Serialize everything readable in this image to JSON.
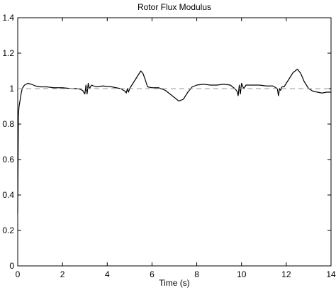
{
  "chart_data": {
    "type": "line",
    "title": "Rotor Flux Modulus",
    "xlabel": "Time (s)",
    "ylabel": "",
    "xlim": [
      0,
      14
    ],
    "ylim": [
      0,
      1.4
    ],
    "x_ticks": [
      "0",
      "2",
      "4",
      "6",
      "8",
      "10",
      "12",
      "14"
    ],
    "y_ticks": [
      "0",
      "0.2",
      "0.4",
      "0.6",
      "0.8",
      "1",
      "1.2",
      "1.4"
    ],
    "grid": false,
    "series": [
      {
        "style": "solid",
        "color": "#000000",
        "x": [
          0,
          0.03,
          0.06,
          0.1,
          0.15,
          0.2,
          0.3,
          0.45,
          0.6,
          0.8,
          1.0,
          1.3,
          1.6,
          2.0,
          2.4,
          2.7,
          2.9,
          3.0,
          3.05,
          3.1,
          3.15,
          3.2,
          3.3,
          3.5,
          3.8,
          4.2,
          4.6,
          4.8,
          4.85,
          4.9,
          4.95,
          5.0,
          5.1,
          5.25,
          5.4,
          5.5,
          5.6,
          5.7,
          5.8,
          6.0,
          6.3,
          6.6,
          6.8,
          7.0,
          7.2,
          7.4,
          7.6,
          7.8,
          8.0,
          8.3,
          8.6,
          8.9,
          9.2,
          9.5,
          9.7,
          9.8,
          9.85,
          9.9,
          9.95,
          10.0,
          10.1,
          10.2,
          10.5,
          10.8,
          11.1,
          11.4,
          11.6,
          11.65,
          11.7,
          11.75,
          11.8,
          11.9,
          12.0,
          12.15,
          12.3,
          12.5,
          12.65,
          12.8,
          13.0,
          13.2,
          13.4,
          13.6,
          13.8,
          14.0
        ],
        "y": [
          0.3,
          0.85,
          0.9,
          0.93,
          0.97,
          1.0,
          1.02,
          1.03,
          1.025,
          1.015,
          1.01,
          1.01,
          1.005,
          1.005,
          1.0,
          1.0,
          0.99,
          0.97,
          1.02,
          0.97,
          1.03,
          1.0,
          1.02,
          1.01,
          1.015,
          1.01,
          1.0,
          0.985,
          0.975,
          1.0,
          0.98,
          1.0,
          1.02,
          1.05,
          1.08,
          1.1,
          1.085,
          1.05,
          1.01,
          1.005,
          1.005,
          0.99,
          0.97,
          0.95,
          0.93,
          0.94,
          0.98,
          1.01,
          1.02,
          1.025,
          1.02,
          1.02,
          1.025,
          1.02,
          1.0,
          0.985,
          0.96,
          1.02,
          0.97,
          1.03,
          1.0,
          1.02,
          1.02,
          1.02,
          1.015,
          1.015,
          1.0,
          0.96,
          1.0,
          0.99,
          1.01,
          1.01,
          1.03,
          1.06,
          1.09,
          1.11,
          1.085,
          1.04,
          1.0,
          0.985,
          0.98,
          0.975,
          0.98,
          0.98
        ]
      },
      {
        "style": "dashed",
        "color": "#999999",
        "x": [
          0,
          14
        ],
        "y": [
          1,
          1
        ]
      }
    ]
  }
}
